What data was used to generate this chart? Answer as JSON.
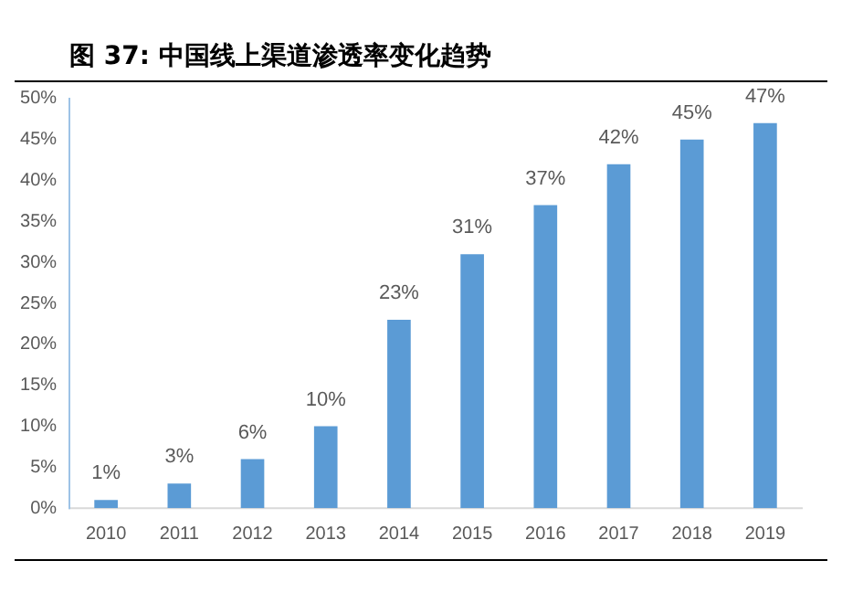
{
  "chart_data": {
    "type": "bar",
    "title": "图 37:  中国线上渠道渗透率变化趋势",
    "categories": [
      "2010",
      "2011",
      "2012",
      "2013",
      "2014",
      "2015",
      "2016",
      "2017",
      "2018",
      "2019"
    ],
    "values": [
      1,
      3,
      6,
      10,
      23,
      31,
      37,
      42,
      45,
      47
    ],
    "value_labels": [
      "1%",
      "3%",
      "6%",
      "10%",
      "23%",
      "31%",
      "37%",
      "42%",
      "45%",
      "47%"
    ],
    "color": "#5b9bd5",
    "ylim": [
      0,
      50
    ],
    "yticks": [
      {
        "value": 0,
        "label": "0%"
      },
      {
        "value": 5,
        "label": "5%"
      },
      {
        "value": 10,
        "label": "10%"
      },
      {
        "value": 15,
        "label": "15%"
      },
      {
        "value": 20,
        "label": "20%"
      },
      {
        "value": 25,
        "label": "25%"
      },
      {
        "value": 30,
        "label": "30%"
      },
      {
        "value": 35,
        "label": "35%"
      },
      {
        "value": 40,
        "label": "40%"
      },
      {
        "value": 45,
        "label": "45%"
      },
      {
        "value": 50,
        "label": "50%"
      }
    ],
    "grid": false,
    "legend": false
  }
}
